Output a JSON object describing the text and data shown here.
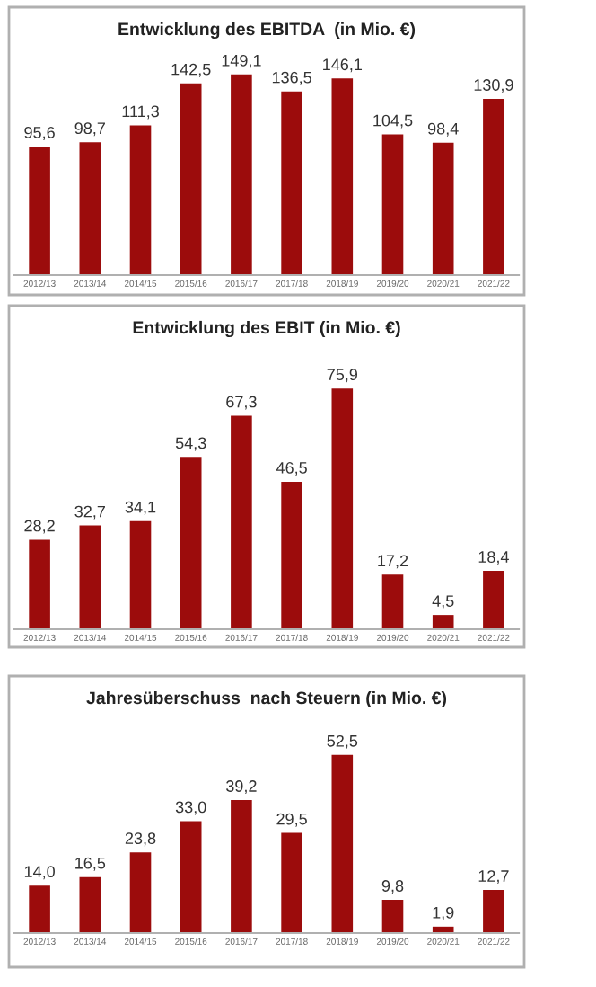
{
  "chart_data": [
    {
      "type": "bar",
      "title": "Entwicklung des EBITDA  (in Mio. €)",
      "categories": [
        "2012/13",
        "2013/14",
        "2014/15",
        "2015/16",
        "2016/17",
        "2017/18",
        "2018/19",
        "2019/20",
        "2020/21",
        "2021/22"
      ],
      "values": [
        95.6,
        98.7,
        111.3,
        142.5,
        149.1,
        136.5,
        146.1,
        104.5,
        98.4,
        130.9
      ],
      "value_labels": [
        "95,6",
        "98,7",
        "111,3",
        "142,5",
        "149,1",
        "136,5",
        "146,1",
        "104,5",
        "98,4",
        "130,9"
      ],
      "color": "#9c0c0c",
      "tick_labels": "x",
      "grid": false,
      "legend": false
    },
    {
      "type": "bar",
      "title": "Entwicklung des EBIT (in Mio. €)",
      "categories": [
        "2012/13",
        "2013/14",
        "2014/15",
        "2015/16",
        "2016/17",
        "2017/18",
        "2018/19",
        "2019/20",
        "2020/21",
        "2021/22"
      ],
      "values": [
        28.2,
        32.7,
        34.1,
        54.3,
        67.3,
        46.5,
        75.9,
        17.2,
        4.5,
        18.4
      ],
      "value_labels": [
        "28,2",
        "32,7",
        "34,1",
        "54,3",
        "67,3",
        "46,5",
        "75,9",
        "17,2",
        "4,5",
        "18,4"
      ],
      "color": "#9c0c0c",
      "tick_labels": "x",
      "grid": false,
      "legend": false
    },
    {
      "type": "bar",
      "title": "Jahresüberschuss  nach Steuern (in Mio. €)",
      "categories": [
        "2012/13",
        "2013/14",
        "2014/15",
        "2015/16",
        "2016/17",
        "2017/18",
        "2018/19",
        "2019/20",
        "2020/21",
        "2021/22"
      ],
      "values": [
        14.0,
        16.5,
        23.8,
        33.0,
        39.2,
        29.5,
        52.5,
        9.8,
        1.9,
        12.7
      ],
      "value_labels": [
        "14,0",
        "16,5",
        "23,8",
        "33,0",
        "39,2",
        "29,5",
        "52,5",
        "9,8",
        "1,9",
        "12,7"
      ],
      "color": "#9c0c0c",
      "tick_labels": "x",
      "grid": false,
      "legend": false
    }
  ]
}
